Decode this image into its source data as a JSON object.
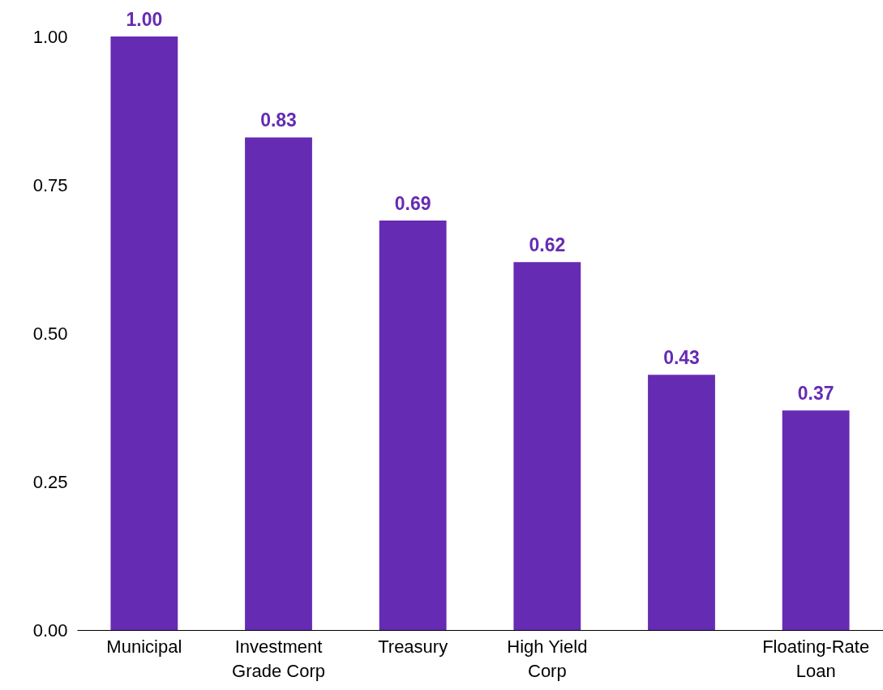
{
  "chart_data": {
    "type": "bar",
    "categories": [
      "Municipal",
      "Investment Grade Corp",
      "Treasury",
      "High Yield Corp",
      null,
      "Floating-Rate Loan"
    ],
    "values": [
      1.0,
      0.83,
      0.69,
      0.62,
      0.43,
      0.37
    ],
    "color": "#662bb3",
    "value_labels": [
      "1.00",
      "0.83",
      "0.69",
      "0.62",
      "0.43",
      "0.37"
    ],
    "ylim": [
      0,
      1
    ],
    "yticks": [
      {
        "value": 0,
        "label": "0.00"
      },
      {
        "value": 0.25,
        "label": "0.25"
      },
      {
        "value": 0.5,
        "label": "0.50"
      },
      {
        "value": 0.75,
        "label": "0.75"
      },
      {
        "value": 1,
        "label": "1.00"
      }
    ],
    "grid": false
  }
}
